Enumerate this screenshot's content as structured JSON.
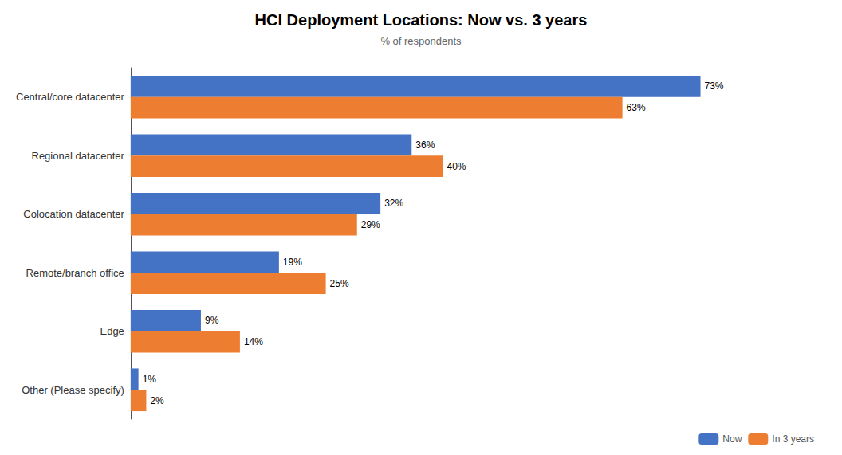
{
  "chart_data": {
    "type": "bar",
    "orientation": "horizontal",
    "title": "HCI Deployment Locations: Now vs. 3 years",
    "subtitle": "% of respondents",
    "categories": [
      "Central/core datacenter",
      "Regional datacenter",
      "Colocation datacenter",
      "Remote/branch office",
      "Edge",
      "Other (Please specify)"
    ],
    "series": [
      {
        "name": "Now",
        "color": "#4472C4",
        "values": [
          73,
          36,
          32,
          19,
          9,
          1
        ],
        "value_labels": [
          "73%",
          "36%",
          "32%",
          "19%",
          "9%",
          "1%"
        ]
      },
      {
        "name": "In 3 years",
        "color": "#ED7D31",
        "values": [
          63,
          40,
          29,
          25,
          14,
          2
        ],
        "value_labels": [
          "63%",
          "40%",
          "29%",
          "25%",
          "14%",
          "2%"
        ]
      }
    ],
    "xlim": [
      0,
      85
    ],
    "data_labels": true,
    "tick_labels": "y",
    "grid": false,
    "legend": "lower right"
  }
}
